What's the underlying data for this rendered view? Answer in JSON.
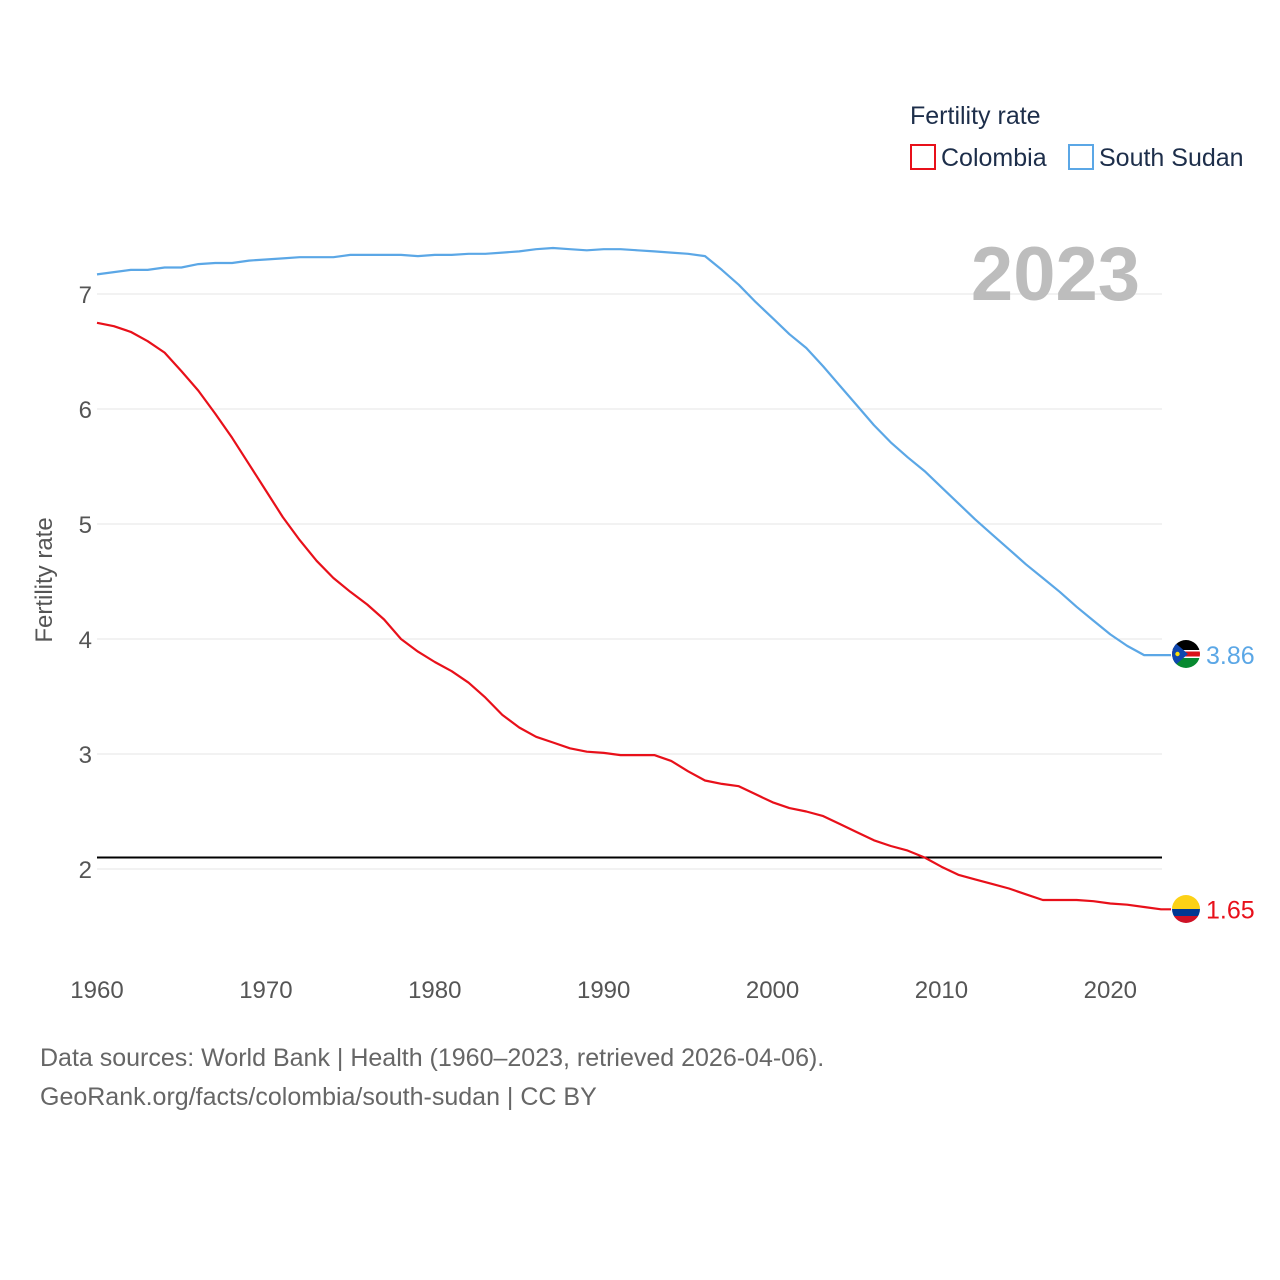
{
  "chart_data": {
    "type": "line",
    "legend_title": "Fertility rate",
    "ylabel": "Fertility rate",
    "year_label": "2023",
    "xlim": [
      1960,
      2023
    ],
    "ylim": [
      1.35,
      7.55
    ],
    "x_ticks": [
      1960,
      1970,
      1980,
      1990,
      2000,
      2010,
      2020
    ],
    "y_ticks": [
      2,
      3,
      4,
      5,
      6,
      7
    ],
    "reference_line": 2.1,
    "colors": {
      "reference": "#000000",
      "grid": "#e6e6e6"
    },
    "series": [
      {
        "name": "Colombia",
        "color": "#e8101a",
        "end_label": "1.65",
        "flag_icon": "colombia-flag-icon",
        "x": [
          1960,
          1961,
          1962,
          1963,
          1964,
          1965,
          1966,
          1967,
          1968,
          1969,
          1970,
          1971,
          1972,
          1973,
          1974,
          1975,
          1976,
          1977,
          1978,
          1979,
          1980,
          1981,
          1982,
          1983,
          1984,
          1985,
          1986,
          1987,
          1988,
          1989,
          1990,
          1991,
          1992,
          1993,
          1994,
          1995,
          1996,
          1997,
          1998,
          1999,
          2000,
          2001,
          2002,
          2003,
          2004,
          2005,
          2006,
          2007,
          2008,
          2009,
          2010,
          2011,
          2012,
          2013,
          2014,
          2015,
          2016,
          2017,
          2018,
          2019,
          2020,
          2021,
          2022,
          2023
        ],
        "values": [
          6.75,
          6.72,
          6.67,
          6.59,
          6.49,
          6.33,
          6.16,
          5.96,
          5.75,
          5.52,
          5.29,
          5.06,
          4.86,
          4.68,
          4.53,
          4.41,
          4.3,
          4.17,
          4.0,
          3.89,
          3.8,
          3.72,
          3.62,
          3.49,
          3.34,
          3.23,
          3.15,
          3.1,
          3.05,
          3.02,
          3.01,
          2.99,
          2.99,
          2.99,
          2.94,
          2.85,
          2.77,
          2.74,
          2.72,
          2.65,
          2.58,
          2.53,
          2.5,
          2.46,
          2.39,
          2.32,
          2.25,
          2.2,
          2.16,
          2.1,
          2.02,
          1.95,
          1.91,
          1.87,
          1.83,
          1.78,
          1.73,
          1.73,
          1.73,
          1.72,
          1.7,
          1.69,
          1.67,
          1.65
        ]
      },
      {
        "name": "South Sudan",
        "color": "#5ba7e6",
        "end_label": "3.86",
        "flag_icon": "south-sudan-flag-icon",
        "x": [
          1960,
          1961,
          1962,
          1963,
          1964,
          1965,
          1966,
          1967,
          1968,
          1969,
          1970,
          1971,
          1972,
          1973,
          1974,
          1975,
          1976,
          1977,
          1978,
          1979,
          1980,
          1981,
          1982,
          1983,
          1984,
          1985,
          1986,
          1987,
          1988,
          1989,
          1990,
          1991,
          1992,
          1993,
          1994,
          1995,
          1996,
          1997,
          1998,
          1999,
          2000,
          2001,
          2002,
          2003,
          2004,
          2005,
          2006,
          2007,
          2008,
          2009,
          2010,
          2011,
          2012,
          2013,
          2014,
          2015,
          2016,
          2017,
          2018,
          2019,
          2020,
          2021,
          2022,
          2023
        ],
        "values": [
          7.17,
          7.19,
          7.21,
          7.21,
          7.23,
          7.23,
          7.26,
          7.27,
          7.27,
          7.29,
          7.3,
          7.31,
          7.32,
          7.32,
          7.32,
          7.34,
          7.34,
          7.34,
          7.34,
          7.33,
          7.34,
          7.34,
          7.35,
          7.35,
          7.36,
          7.37,
          7.39,
          7.4,
          7.39,
          7.38,
          7.39,
          7.39,
          7.38,
          7.37,
          7.36,
          7.35,
          7.33,
          7.21,
          7.08,
          6.93,
          6.79,
          6.65,
          6.53,
          6.37,
          6.2,
          6.03,
          5.86,
          5.71,
          5.58,
          5.46,
          5.32,
          5.18,
          5.04,
          4.91,
          4.78,
          4.65,
          4.53,
          4.41,
          4.28,
          4.16,
          4.04,
          3.94,
          3.86,
          3.86
        ]
      }
    ]
  },
  "source": {
    "line1": "Data sources: World Bank | Health (1960–2023, retrieved 2026-04-06).",
    "line2": "GeoRank.org/facts/colombia/south-sudan | CC BY"
  }
}
